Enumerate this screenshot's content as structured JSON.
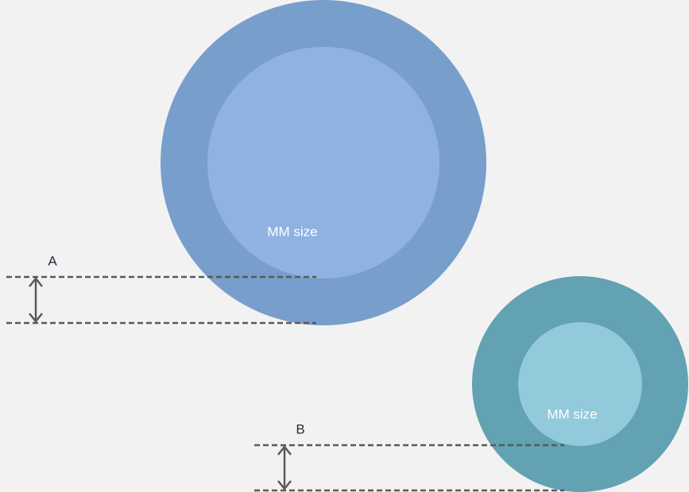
{
  "diagram": {
    "circles": [
      {
        "label": "MM size"
      },
      {
        "label": "MM size"
      }
    ],
    "dimensions": [
      {
        "label": "A"
      },
      {
        "label": "B"
      }
    ]
  }
}
